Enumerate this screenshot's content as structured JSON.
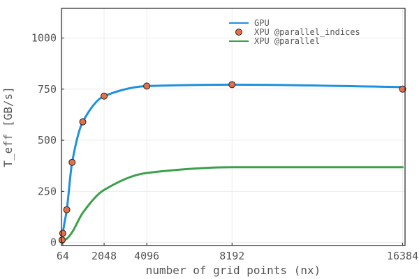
{
  "chart_data": {
    "type": "line",
    "title": "",
    "xlabel": "number of grid points (nx)",
    "ylabel": "T_eff [GB/s]",
    "xlim": [
      0,
      16500
    ],
    "ylim": [
      -15,
      1145
    ],
    "xticks": [
      64,
      2048,
      4096,
      8192,
      16384
    ],
    "xtick_labels": [
      "64",
      "2048",
      "4096",
      "8192",
      "16384"
    ],
    "yticks": [
      0,
      250,
      500,
      750,
      1000
    ],
    "ytick_labels": [
      "0",
      "250",
      "500",
      "750",
      "1000"
    ],
    "grid": true,
    "legend_position": "top-right",
    "series": [
      {
        "name": "GPU",
        "style": "line",
        "color": "#1e90e0",
        "x": [
          32,
          64,
          256,
          512,
          1024,
          2048,
          4096,
          8192,
          16384
        ],
        "y": [
          12,
          45,
          160,
          392,
          590,
          716,
          765,
          772,
          760
        ]
      },
      {
        "name": "XPU @parallel_indices",
        "style": "markers",
        "color": "#e2704a",
        "x": [
          32,
          64,
          256,
          512,
          1024,
          2048,
          4096,
          8192,
          16384
        ],
        "y": [
          12,
          45,
          160,
          392,
          590,
          716,
          765,
          772,
          750
        ]
      },
      {
        "name": "XPU @parallel",
        "style": "line",
        "color": "#3aa04a",
        "x": [
          32,
          64,
          256,
          512,
          1024,
          2048,
          4096,
          8192,
          16384
        ],
        "y": [
          2,
          8,
          18,
          50,
          145,
          257,
          340,
          368,
          368
        ]
      }
    ]
  }
}
